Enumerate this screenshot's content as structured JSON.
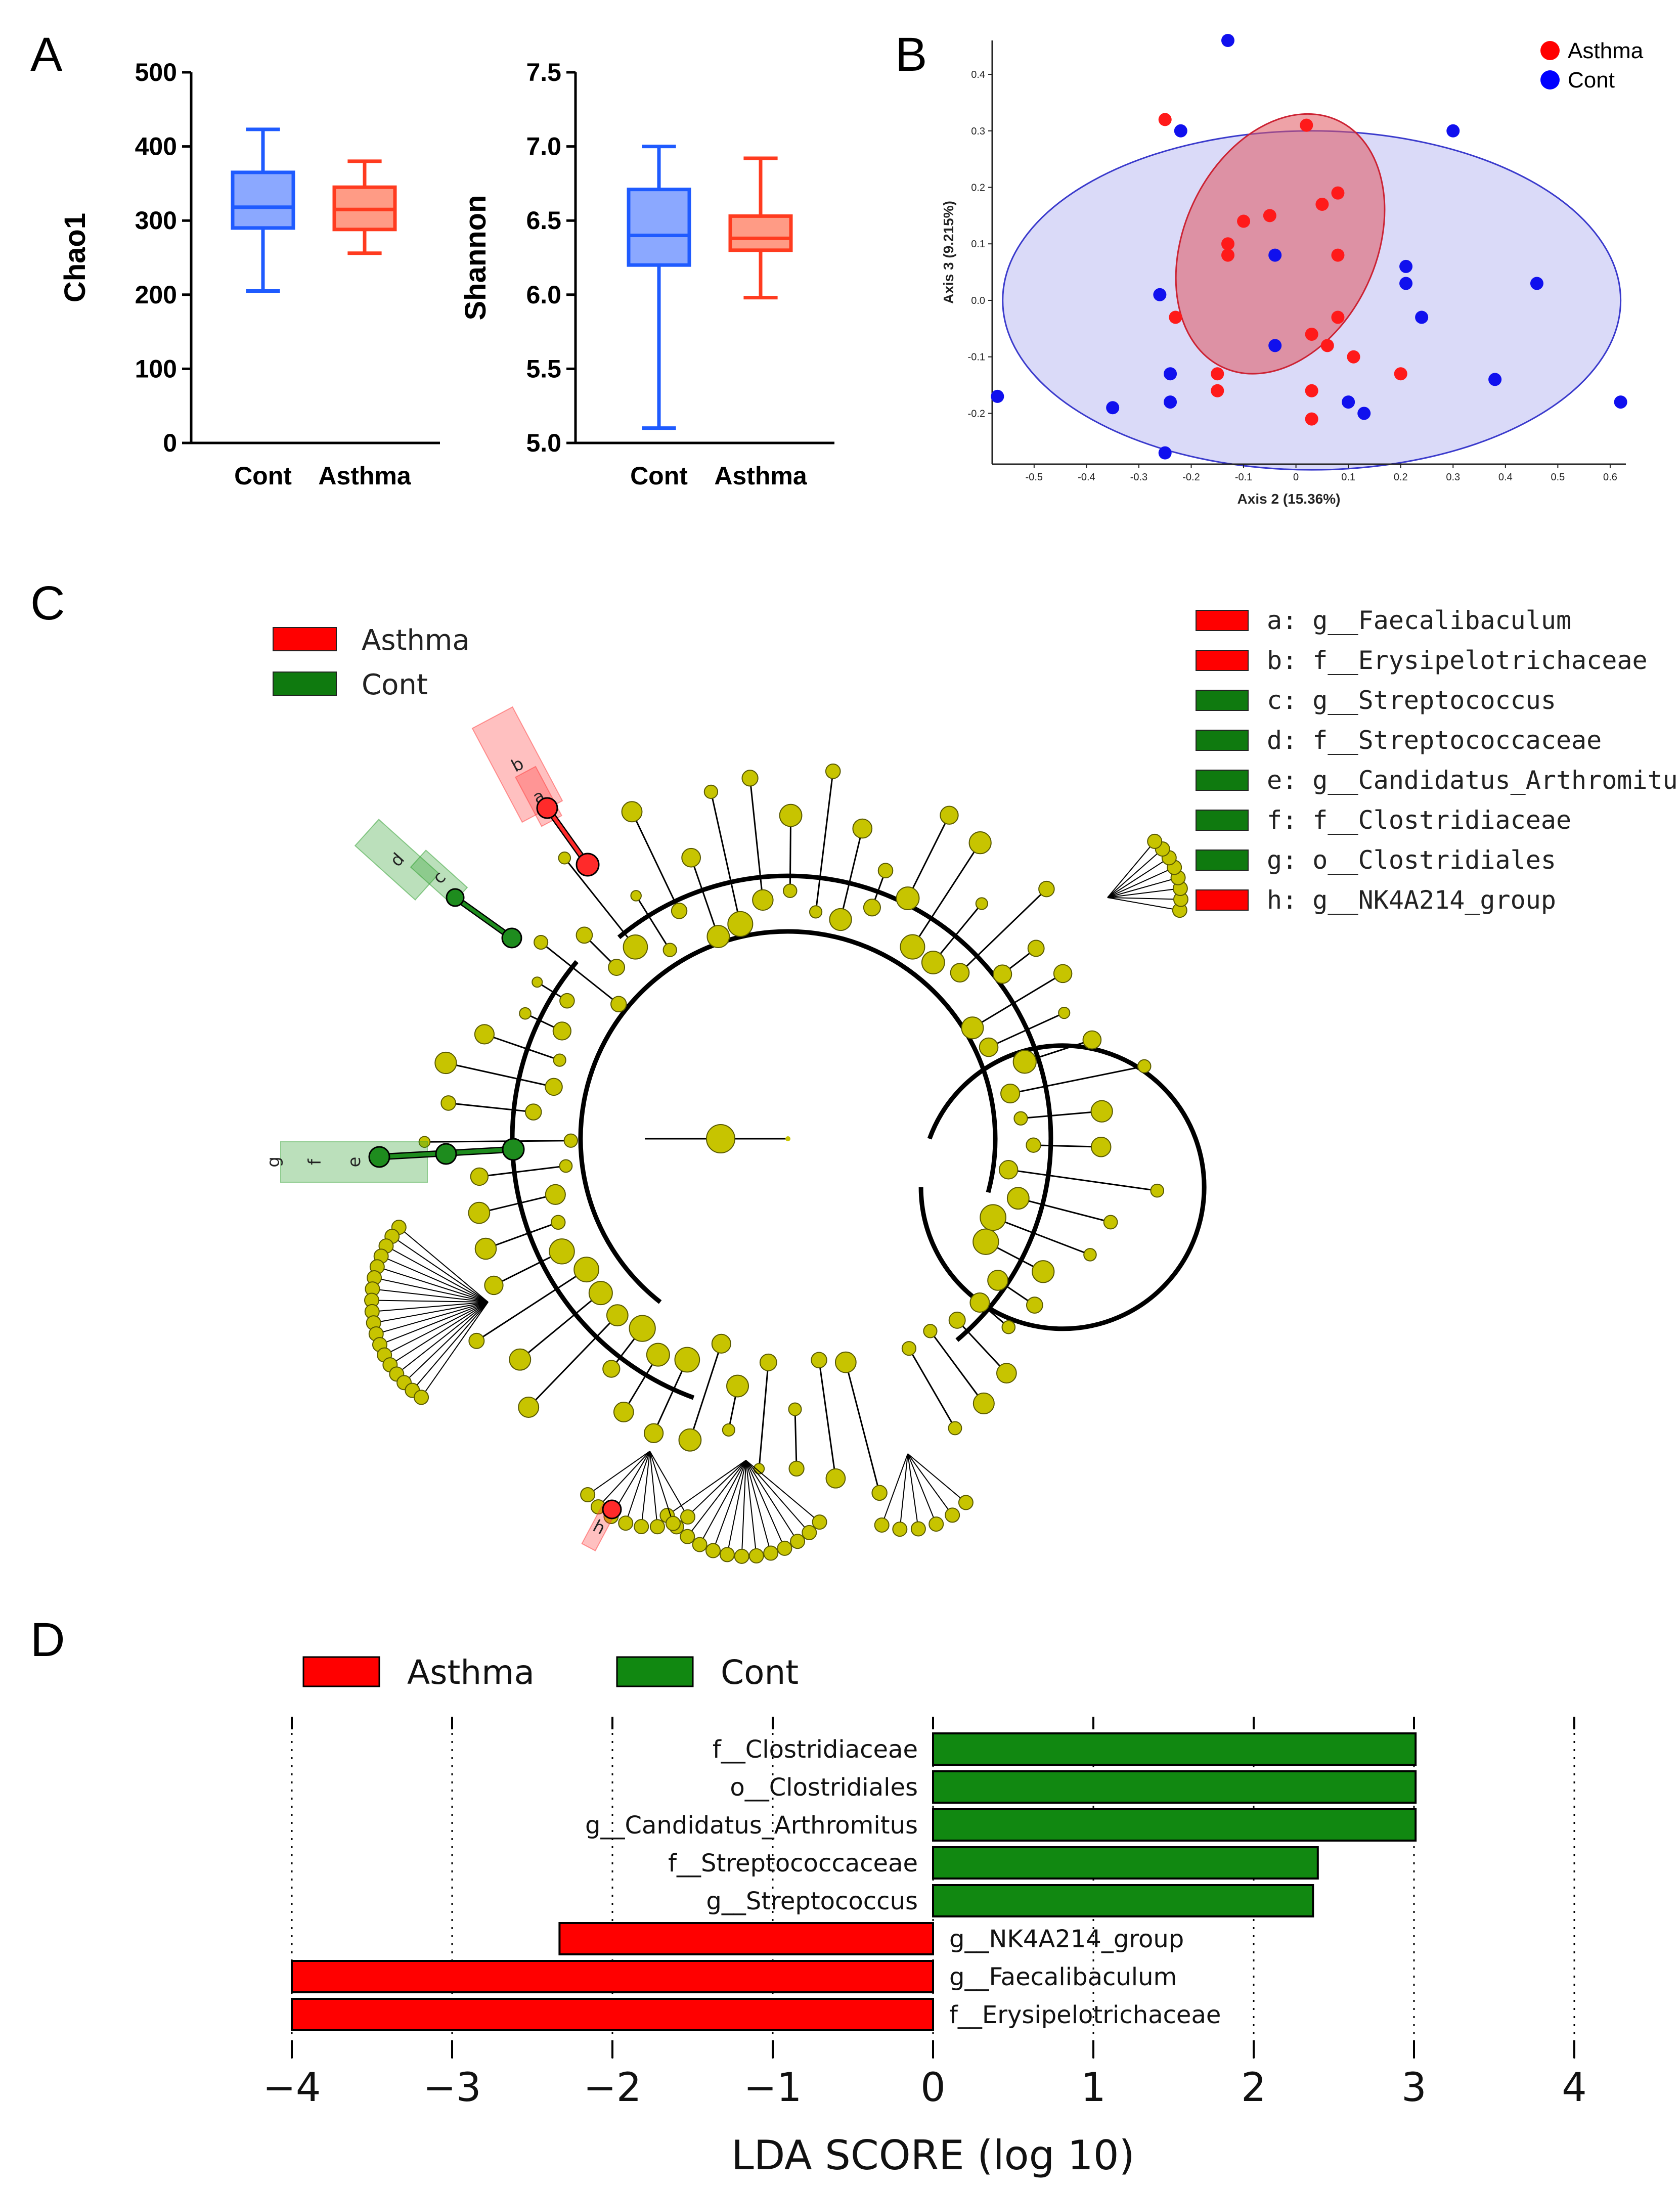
{
  "panels": {
    "a": "A",
    "b": "B",
    "c": "C",
    "d": "D"
  },
  "colors": {
    "asthma_red": "#ff0000",
    "cont_blue": "#0000ff",
    "cont_green": "#118811",
    "node_yellow": "#c7c400",
    "box_blue": "#1f5bff",
    "box_blue_fill": "#8ba8ff",
    "box_red": "#ff3b1f",
    "box_red_fill": "#ff9b85"
  },
  "chart_data": [
    {
      "type": "box",
      "panel": "A",
      "ylabel": "Chao1",
      "ylim": [
        0,
        500
      ],
      "yticks": [
        "0",
        "100",
        "200",
        "300",
        "400",
        "500"
      ],
      "categories": [
        "Cont",
        "Asthma"
      ],
      "boxes": [
        {
          "group": "Cont",
          "min": 205,
          "q1": 290,
          "median": 318,
          "q3": 365,
          "max": 423
        },
        {
          "group": "Asthma",
          "min": 256,
          "q1": 288,
          "median": 315,
          "q3": 345,
          "max": 380
        }
      ]
    },
    {
      "type": "box",
      "panel": "A",
      "ylabel": "Shannon",
      "ylim": [
        5.0,
        7.5
      ],
      "yticks": [
        "5.0",
        "5.5",
        "6.0",
        "6.5",
        "7.0",
        "7.5"
      ],
      "categories": [
        "Cont",
        "Asthma"
      ],
      "boxes": [
        {
          "group": "Cont",
          "min": 5.1,
          "q1": 6.2,
          "median": 6.4,
          "q3": 6.71,
          "max": 7.0
        },
        {
          "group": "Asthma",
          "min": 5.98,
          "q1": 6.3,
          "median": 6.38,
          "q3": 6.53,
          "max": 6.92
        }
      ]
    },
    {
      "type": "scatter",
      "panel": "B",
      "xlabel": "Axis 2 (15.36%)",
      "ylabel": "Axis 3 (9.215%)",
      "xlim": [
        -0.58,
        0.63
      ],
      "ylim": [
        -0.29,
        0.46
      ],
      "xticks": [
        "-0.5",
        "-0.4",
        "-0.3",
        "-0.2",
        "-0.1",
        "0",
        "0.1",
        "0.2",
        "0.3",
        "0.4",
        "0.5",
        "0.6"
      ],
      "yticks": [
        "-0.2",
        "-0.1",
        "0.0",
        "0.1",
        "0.2",
        "0.3",
        "0.4"
      ],
      "legend": [
        {
          "name": "Asthma",
          "color": "#ff0000"
        },
        {
          "name": "Cont",
          "color": "#0000ff"
        }
      ],
      "ellipses": [
        {
          "group": "Cont",
          "cx": 0.03,
          "cy": 0.0,
          "rx": 0.59,
          "ry": 0.3,
          "angle": 0
        },
        {
          "group": "Asthma",
          "cx": -0.03,
          "cy": 0.1,
          "rx": 0.26,
          "ry": 0.17,
          "angle": -65
        }
      ],
      "series": [
        {
          "name": "Asthma",
          "points": [
            [
              -0.25,
              0.32
            ],
            [
              0.02,
              0.31
            ],
            [
              0.08,
              0.19
            ],
            [
              0.05,
              0.17
            ],
            [
              -0.1,
              0.14
            ],
            [
              -0.05,
              0.15
            ],
            [
              -0.13,
              0.1
            ],
            [
              -0.13,
              0.08
            ],
            [
              0.08,
              0.08
            ],
            [
              -0.23,
              -0.03
            ],
            [
              0.08,
              -0.03
            ],
            [
              0.03,
              -0.06
            ],
            [
              0.06,
              -0.08
            ],
            [
              0.11,
              -0.1
            ],
            [
              -0.15,
              -0.13
            ],
            [
              0.2,
              -0.13
            ],
            [
              -0.15,
              -0.16
            ],
            [
              0.03,
              -0.16
            ],
            [
              0.03,
              -0.21
            ]
          ]
        },
        {
          "name": "Cont",
          "points": [
            [
              -0.13,
              0.46
            ],
            [
              0.3,
              0.3
            ],
            [
              -0.22,
              0.3
            ],
            [
              -0.04,
              0.08
            ],
            [
              0.21,
              0.06
            ],
            [
              0.21,
              0.03
            ],
            [
              0.46,
              0.03
            ],
            [
              -0.26,
              0.01
            ],
            [
              0.24,
              -0.03
            ],
            [
              -0.04,
              -0.08
            ],
            [
              -0.24,
              -0.13
            ],
            [
              0.38,
              -0.14
            ],
            [
              -0.57,
              -0.17
            ],
            [
              -0.24,
              -0.18
            ],
            [
              -0.35,
              -0.19
            ],
            [
              0.1,
              -0.18
            ],
            [
              0.62,
              -0.18
            ],
            [
              0.13,
              -0.2
            ],
            [
              -0.25,
              -0.27
            ]
          ]
        }
      ]
    },
    {
      "type": "other",
      "panel": "C",
      "subtype": "cladogram",
      "legend": [
        {
          "name": "Asthma",
          "color": "#ff0000"
        },
        {
          "name": "Cont",
          "color": "#118811"
        }
      ],
      "highlighted_taxa": [
        {
          "key": "a",
          "label": "a: g__Faecalibaculum",
          "group": "Asthma"
        },
        {
          "key": "b",
          "label": "b: f__Erysipelotrichaceae",
          "group": "Asthma"
        },
        {
          "key": "c",
          "label": "c: g__Streptococcus",
          "group": "Cont"
        },
        {
          "key": "d",
          "label": "d: f__Streptococcaceae",
          "group": "Cont"
        },
        {
          "key": "e",
          "label": "e: g__Candidatus_Arthromitu",
          "group": "Cont"
        },
        {
          "key": "f",
          "label": "f: f__Clostridiaceae",
          "group": "Cont"
        },
        {
          "key": "g",
          "label": "g: o__Clostridiales",
          "group": "Cont"
        },
        {
          "key": "h",
          "label": "h: g__NK4A214_group",
          "group": "Asthma"
        }
      ]
    },
    {
      "type": "bar",
      "panel": "D",
      "orientation": "horizontal",
      "xlabel": "LDA SCORE (log 10)",
      "xlim": [
        -4,
        4
      ],
      "xticks": [
        "−4",
        "−3",
        "−2",
        "−1",
        "0",
        "1",
        "2",
        "3",
        "4"
      ],
      "legend": [
        {
          "name": "Asthma",
          "color": "#ff0000"
        },
        {
          "name": "Cont",
          "color": "#118811"
        }
      ],
      "categories": [
        "f__Clostridiaceae",
        "o__Clostridiales",
        "g__Candidatus_Arthromitus",
        "f__Streptococcaceae",
        "g__Streptococcus",
        "g__NK4A214_group",
        "g__Faecalibaculum",
        "f__Erysipelotrichaceae"
      ],
      "values": [
        3.01,
        3.01,
        3.01,
        2.4,
        2.37,
        -2.33,
        -4.0,
        -4.0
      ],
      "groups": [
        "Cont",
        "Cont",
        "Cont",
        "Cont",
        "Cont",
        "Asthma",
        "Asthma",
        "Asthma"
      ]
    }
  ]
}
